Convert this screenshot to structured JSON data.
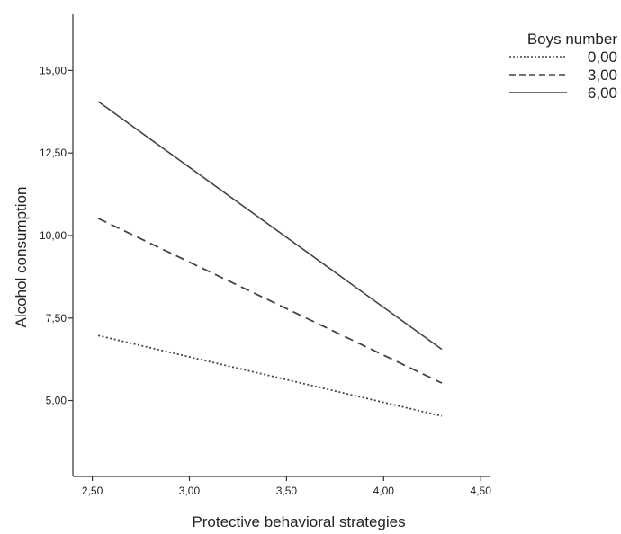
{
  "chart_data": {
    "type": "line",
    "title": "",
    "xlabel": "Protective behavioral strategies",
    "ylabel": "Alcohol consumption",
    "xlim": [
      2.4,
      4.55
    ],
    "ylim": [
      2.7,
      16.7
    ],
    "xticks": [
      2.5,
      3.0,
      3.5,
      4.0,
      4.5
    ],
    "xtick_labels": [
      "2,50",
      "3,00",
      "3,50",
      "4,00",
      "4,50"
    ],
    "yticks": [
      5.0,
      7.5,
      10.0,
      12.5,
      15.0
    ],
    "ytick_labels": [
      "5,00",
      "7,50",
      "10,00",
      "12,50",
      "15,00"
    ],
    "grid": false,
    "legend": {
      "title": "Boys number",
      "placement": "top-right"
    },
    "series": [
      {
        "name": "0,00",
        "style": "dotted",
        "color": "#444444",
        "x": [
          2.53,
          4.3
        ],
        "y": [
          6.97,
          4.53
        ]
      },
      {
        "name": "3,00",
        "style": "dashed",
        "color": "#444444",
        "x": [
          2.53,
          4.3
        ],
        "y": [
          10.52,
          5.53
        ]
      },
      {
        "name": "6,00",
        "style": "solid",
        "color": "#444444",
        "x": [
          2.53,
          4.3
        ],
        "y": [
          14.06,
          6.55
        ]
      }
    ]
  }
}
